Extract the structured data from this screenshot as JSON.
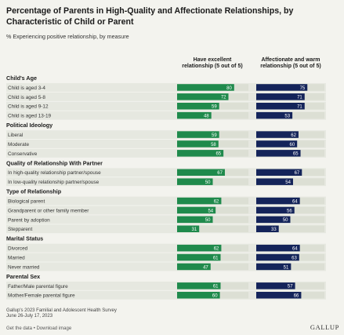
{
  "title_line1": "Percentage of Parents in High-Quality and Affectionate Relationships, by",
  "title_line2": "Characteristic of Child or Parent",
  "subtitle": "% Experiencing positive relationship, by measure",
  "colors": {
    "excellent_bar": "#1f8a4c",
    "affection_bar": "#14245a",
    "track": "#dcdfd4",
    "background": "#f3f3ee",
    "row_band": "#e6e8e0"
  },
  "chart_data": {
    "type": "bar",
    "orientation": "horizontal",
    "xlim": [
      0,
      100
    ],
    "series": [
      {
        "name_line1": "Have excellent",
        "name_line2": "relationship (5 out of 5)"
      },
      {
        "name_line1": "Affectionate and warm",
        "name_line2": "relationship (5 out of 5)"
      }
    ],
    "groups": [
      {
        "label": "Child's Age",
        "rows": [
          {
            "label": "Child is aged 3-4",
            "values": [
              80,
              75
            ]
          },
          {
            "label": "Child is aged 5-8",
            "values": [
              72,
              71
            ]
          },
          {
            "label": "Child is aged 9-12",
            "values": [
              59,
              71
            ]
          },
          {
            "label": "Child is aged 13-19",
            "values": [
              48,
              53
            ]
          }
        ]
      },
      {
        "label": "Political Ideology",
        "rows": [
          {
            "label": "Liberal",
            "values": [
              59,
              62
            ]
          },
          {
            "label": "Moderate",
            "values": [
              58,
              60
            ]
          },
          {
            "label": "Conservative",
            "values": [
              65,
              65
            ]
          }
        ]
      },
      {
        "label": "Quality of Relationship With Partner",
        "rows": [
          {
            "label": "In high-quality relationship partner/spouse",
            "values": [
              67,
              67
            ]
          },
          {
            "label": "In low-quality relationship partner/spouse",
            "values": [
              50,
              54
            ]
          }
        ]
      },
      {
        "label": "Type of Relationship",
        "rows": [
          {
            "label": "Biological parent",
            "values": [
              62,
              64
            ]
          },
          {
            "label": "Grandparent or other family member",
            "values": [
              54,
              56
            ]
          },
          {
            "label": "Parent by adoption",
            "values": [
              50,
              50
            ]
          },
          {
            "label": "Stepparent",
            "values": [
              31,
              33
            ]
          }
        ]
      },
      {
        "label": "Marital Status",
        "rows": [
          {
            "label": "Divorced",
            "values": [
              62,
              64
            ]
          },
          {
            "label": "Married",
            "values": [
              61,
              63
            ]
          },
          {
            "label": "Never married",
            "values": [
              47,
              51
            ]
          }
        ]
      },
      {
        "label": "Parental Sex",
        "rows": [
          {
            "label": "Father/Male parental figure",
            "values": [
              61,
              57
            ]
          },
          {
            "label": "Mother/Female parental figure",
            "values": [
              60,
              66
            ]
          }
        ]
      }
    ]
  },
  "source_line1": "Gallup's 2023 Familial and Adolescent Health Survey",
  "source_line2": "June 26-July 17, 2023",
  "brand": "GALLUP",
  "footer_links": "Get the data • Download image"
}
